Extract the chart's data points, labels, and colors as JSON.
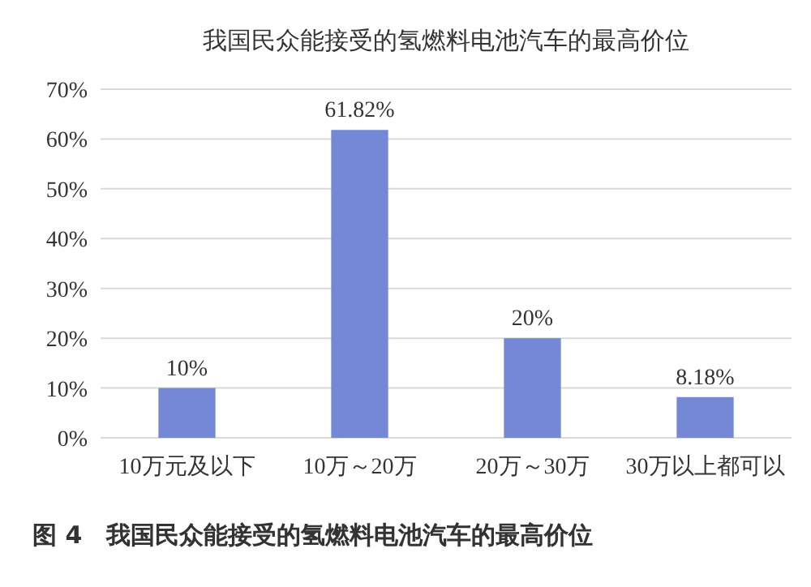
{
  "chart_data": {
    "type": "bar",
    "title": "我国民众能接受的氢燃料电池汽车的最高价位",
    "categories": [
      "10万元及以下",
      "10万～20万",
      "20万～30万",
      "30万以上都可以"
    ],
    "values": [
      10,
      61.82,
      20,
      8.18
    ],
    "value_labels": [
      "10%",
      "61.82%",
      "20%",
      "8.18%"
    ],
    "color": "#7588d6",
    "ylim": [
      0,
      70
    ],
    "yticks": [
      {
        "value": 0,
        "label": "0%"
      },
      {
        "value": 10,
        "label": "10%"
      },
      {
        "value": 20,
        "label": "20%"
      },
      {
        "value": 30,
        "label": "30%"
      },
      {
        "value": 40,
        "label": "40%"
      },
      {
        "value": 50,
        "label": "50%"
      },
      {
        "value": 60,
        "label": "60%"
      },
      {
        "value": 70,
        "label": "70%"
      }
    ],
    "grid": "y",
    "annotations": [
      "图 4　我国民众能接受的氢燃料电池汽车的最高价位"
    ]
  }
}
